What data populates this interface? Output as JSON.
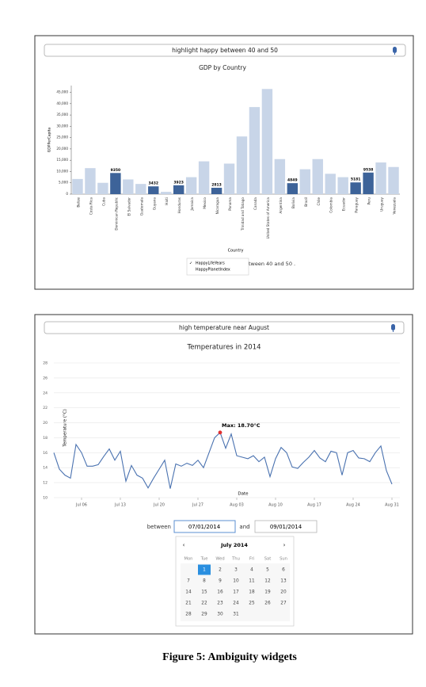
{
  "chart_data": [
    {
      "type": "bar",
      "query": "highlight happy between 40 and 50",
      "title": "GDP by Country",
      "y_label": "GDPPerCapita",
      "x_label": "Country",
      "categories": [
        "Belize",
        "Costa Rica",
        "Cuba",
        "Dominican Republic",
        "El Salvador",
        "Guatemala",
        "Guyana",
        "Haiti",
        "Honduras",
        "Jamaica",
        "Mexico",
        "Nicaragua",
        "Panama",
        "Trinidad and Tobago",
        "Canada",
        "United States of America",
        "Argentina",
        "Bolivia",
        "Brazil",
        "Chile",
        "Colombia",
        "Ecuador",
        "Paraguay",
        "Peru",
        "Uruguay",
        "Venezuela"
      ],
      "values": [
        6700,
        11500,
        5000,
        9350,
        6500,
        4500,
        3432,
        1000,
        3923,
        7500,
        14500,
        2813,
        13500,
        25500,
        38500,
        46500,
        15500,
        4849,
        11000,
        15500,
        9000,
        7500,
        5181,
        9538,
        14000,
        12000
      ],
      "colors": [
        "#c8d5e8",
        "#c8d5e8",
        "#c8d5e8",
        "#3d6399",
        "#c8d5e8",
        "#c8d5e8",
        "#3d6399",
        "#c8d5e8",
        "#3d6399",
        "#c8d5e8",
        "#c8d5e8",
        "#3d6399",
        "#c8d5e8",
        "#c8d5e8",
        "#c8d5e8",
        "#c8d5e8",
        "#c8d5e8",
        "#3d6399",
        "#c8d5e8",
        "#c8d5e8",
        "#c8d5e8",
        "#c8d5e8",
        "#3d6399",
        "#3d6399",
        "#c8d5e8",
        "#c8d5e8"
      ],
      "highlight_color": "#3d6399",
      "ylim": [
        0,
        48000
      ],
      "yticks": [
        0,
        {
          "value": 5000,
          "label": "5,000"
        },
        {
          "value": 10000,
          "label": "10,000"
        },
        {
          "value": 15000,
          "label": "15,000"
        },
        {
          "value": 20000,
          "label": "20,000"
        },
        {
          "value": 25000,
          "label": "25,000"
        },
        {
          "value": 30000,
          "label": "30,000"
        },
        {
          "value": 35000,
          "label": "35,000"
        },
        {
          "value": 40000,
          "label": "40,000"
        },
        {
          "value": 45000,
          "label": "45,000"
        }
      ],
      "grid": false,
      "widget": {
        "behind_text": "tween 40 and 50 .",
        "check": "✓",
        "options": [
          "HappyLifeYears",
          "HappyPlanetIndex"
        ]
      }
    },
    {
      "type": "line",
      "query": "high temperature near August",
      "title": "Temperatures in 2014",
      "y_label": "Temperature (°C)",
      "x_label": "Date",
      "x": [
        "Jul 01",
        "Jul 02",
        "Jul 03",
        "Jul 04",
        "Jul 05",
        "Jul 06",
        "Jul 07",
        "Jul 08",
        "Jul 09",
        "Jul 10",
        "Jul 11",
        "Jul 12",
        "Jul 13",
        "Jul 14",
        "Jul 15",
        "Jul 16",
        "Jul 17",
        "Jul 18",
        "Jul 19",
        "Jul 20",
        "Jul 21",
        "Jul 22",
        "Jul 23",
        "Jul 24",
        "Jul 25",
        "Jul 26",
        "Jul 27",
        "Jul 28",
        "Jul 29",
        "Jul 30",
        "Jul 31",
        "Aug 01",
        "Aug 02",
        "Aug 03",
        "Aug 04",
        "Aug 05",
        "Aug 06",
        "Aug 07",
        "Aug 08",
        "Aug 09",
        "Aug 10",
        "Aug 11",
        "Aug 12",
        "Aug 13",
        "Aug 14",
        "Aug 15",
        "Aug 16",
        "Aug 17",
        "Aug 18",
        "Aug 19",
        "Aug 20",
        "Aug 21",
        "Aug 22",
        "Aug 23",
        "Aug 24",
        "Aug 25",
        "Aug 26",
        "Aug 27",
        "Aug 28",
        "Aug 29",
        "Aug 30",
        "Aug 31"
      ],
      "series": [
        {
          "name": "Temperature",
          "color": "#4a72b0",
          "values": [
            16,
            13.8,
            13,
            12.6,
            17.1,
            16,
            14.2,
            14.2,
            14.4,
            15.5,
            16.5,
            15,
            16.2,
            12.2,
            14.3,
            13,
            12.6,
            11.3,
            12.6,
            13.8,
            15,
            11.2,
            14.5,
            14.2,
            14.6,
            14.3,
            15,
            14,
            16,
            18,
            18.7,
            16.6,
            18.5,
            15.6,
            15.4,
            15.2,
            15.6,
            14.8,
            15.4,
            12.8,
            15.2,
            16.7,
            16,
            14.1,
            13.9,
            14.7,
            15.4,
            16.3,
            15.3,
            14.8,
            16.2,
            16,
            13,
            16,
            16.3,
            15.3,
            15.2,
            14.8,
            16,
            16.9,
            13.6,
            11.8
          ]
        }
      ],
      "ylim": [
        10,
        28
      ],
      "yticks": [
        10,
        12,
        14,
        16,
        18,
        20,
        22,
        24,
        26,
        28
      ],
      "xticks": [
        "Jul 06",
        "Jul 13",
        "Jul 20",
        "Jul 27",
        "Aug 03",
        "Aug 10",
        "Aug 17",
        "Aug 24",
        "Aug 31"
      ],
      "grid": true,
      "annotation": {
        "text": "Max: 18.70°C",
        "index": 30,
        "color": "#e03030"
      },
      "widget": {
        "between": "between",
        "from": "07/01/2014",
        "and": "and",
        "to": "09/01/2014",
        "prev": "‹",
        "next": "›",
        "month": "July  2014",
        "weekdays": [
          "Mon",
          "Tue",
          "Wed",
          "Thu",
          "Fri",
          "Sat",
          "Sun"
        ],
        "weeks": [
          [
            null,
            "1",
            "2",
            "3",
            "4",
            "5",
            "6"
          ],
          [
            "7",
            "8",
            "9",
            "10",
            "11",
            "12",
            "13"
          ],
          [
            "14",
            "15",
            "16",
            "17",
            "18",
            "19",
            "20"
          ],
          [
            "21",
            "22",
            "23",
            "24",
            "25",
            "26",
            "27"
          ],
          [
            "28",
            "29",
            "30",
            "31",
            null,
            null,
            null
          ]
        ],
        "selected": "1",
        "selected_color": "#2a8fe0"
      }
    }
  ],
  "caption": "Figure 5: Ambiguity widgets"
}
